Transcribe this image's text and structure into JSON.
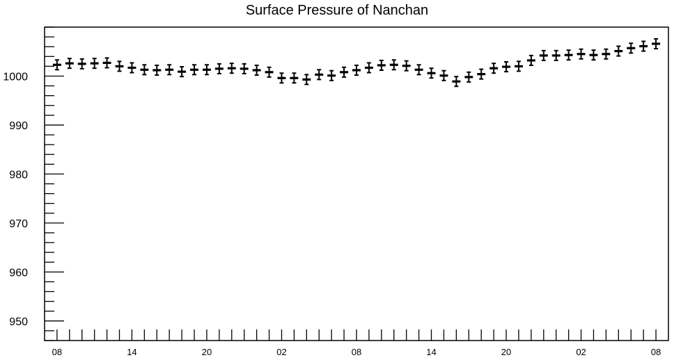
{
  "chart_data": {
    "type": "scatter",
    "title": "Surface Pressure of Nanchan",
    "xlabel": "",
    "ylabel": "",
    "ylim": [
      946,
      1010
    ],
    "yticks": [
      950,
      960,
      970,
      980,
      990,
      1000
    ],
    "x_tick_labels": [
      "08",
      "14",
      "20",
      "02",
      "08",
      "14",
      "20",
      "02",
      "08"
    ],
    "x_tick_hours": [
      0,
      6,
      12,
      18,
      24,
      30,
      36,
      42,
      48
    ],
    "xlim_hours": [
      -1,
      49
    ],
    "series": [
      {
        "x": [
          0,
          1,
          2,
          3,
          4,
          5,
          6,
          7,
          8,
          9,
          10,
          11,
          12,
          13,
          14,
          15,
          16,
          17,
          18,
          19,
          20,
          21,
          22,
          23,
          24,
          25,
          26,
          27,
          28,
          29,
          30,
          31,
          32,
          33,
          34,
          35,
          36,
          37,
          38,
          39,
          40,
          41,
          42,
          43,
          44,
          45,
          46,
          47,
          48
        ],
        "y": [
          1002.3,
          1002.6,
          1002.5,
          1002.6,
          1002.7,
          1002.0,
          1001.7,
          1001.3,
          1001.2,
          1001.3,
          1000.9,
          1001.3,
          1001.3,
          1001.5,
          1001.6,
          1001.5,
          1001.2,
          1000.8,
          999.6,
          999.6,
          999.3,
          1000.3,
          1000.1,
          1000.8,
          1001.2,
          1001.7,
          1002.2,
          1002.3,
          1002.1,
          1001.3,
          1000.6,
          1000.1,
          998.9,
          999.8,
          1000.4,
          1001.6,
          1001.9,
          1002.0,
          1003.2,
          1004.2,
          1004.2,
          1004.3,
          1004.5,
          1004.3,
          1004.5,
          1005.1,
          1005.7,
          1006.1,
          1006.6
        ],
        "error": 1.0
      }
    ],
    "grid": false,
    "legend": "none"
  }
}
